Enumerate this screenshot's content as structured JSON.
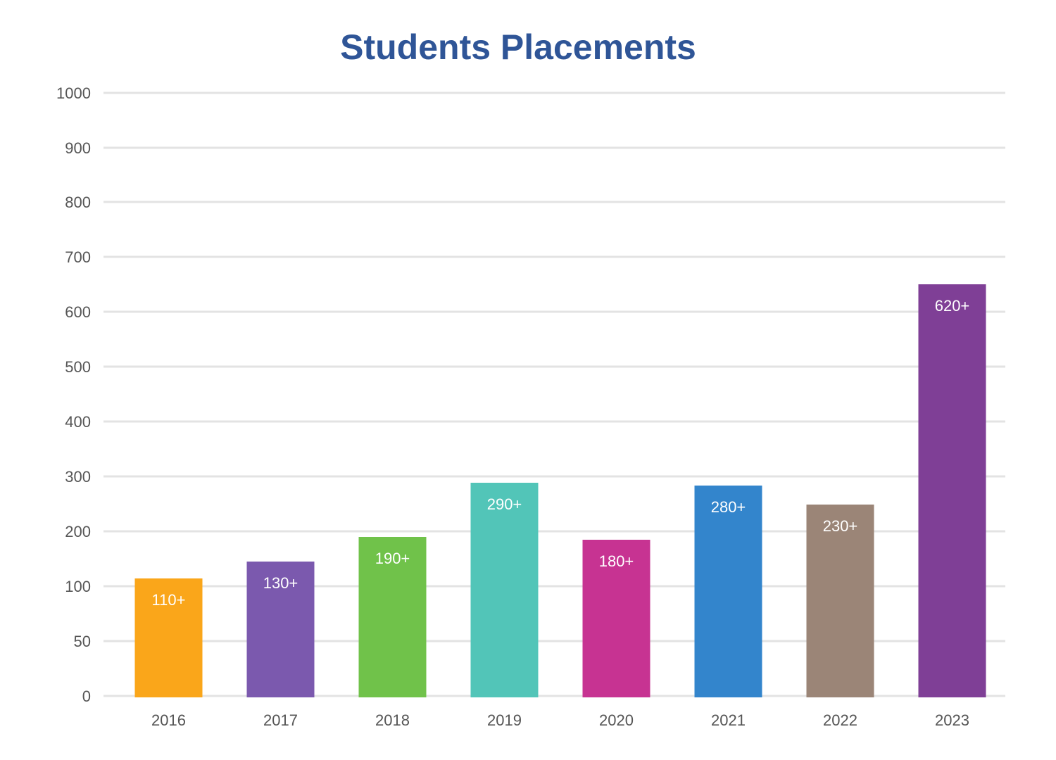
{
  "chart_data": {
    "type": "bar",
    "title": "Students Placements",
    "xlabel": "",
    "ylabel": "",
    "categories": [
      "2016",
      "2017",
      "2018",
      "2019",
      "2020",
      "2021",
      "2022",
      "2023"
    ],
    "values": [
      110,
      130,
      190,
      290,
      180,
      280,
      230,
      620
    ],
    "data_labels": [
      "110+",
      "130+",
      "190+",
      "290+",
      "180+",
      "280+",
      "230+",
      "620+"
    ],
    "bar_colors": [
      "#faa61a",
      "#7b59ae",
      "#70c24a",
      "#52c5b8",
      "#c73392",
      "#3385cc",
      "#9b8577",
      "#7f3f96"
    ],
    "yticks": [
      0,
      50,
      100,
      200,
      300,
      400,
      500,
      600,
      700,
      800,
      900,
      1000
    ],
    "ylim": [
      0,
      1000
    ],
    "grid": true,
    "legend": "none",
    "colors": {
      "title": "#2f5597",
      "grid": "#e3e3e3",
      "tick_text": "#555555",
      "bar_label_text": "#ffffff"
    }
  }
}
